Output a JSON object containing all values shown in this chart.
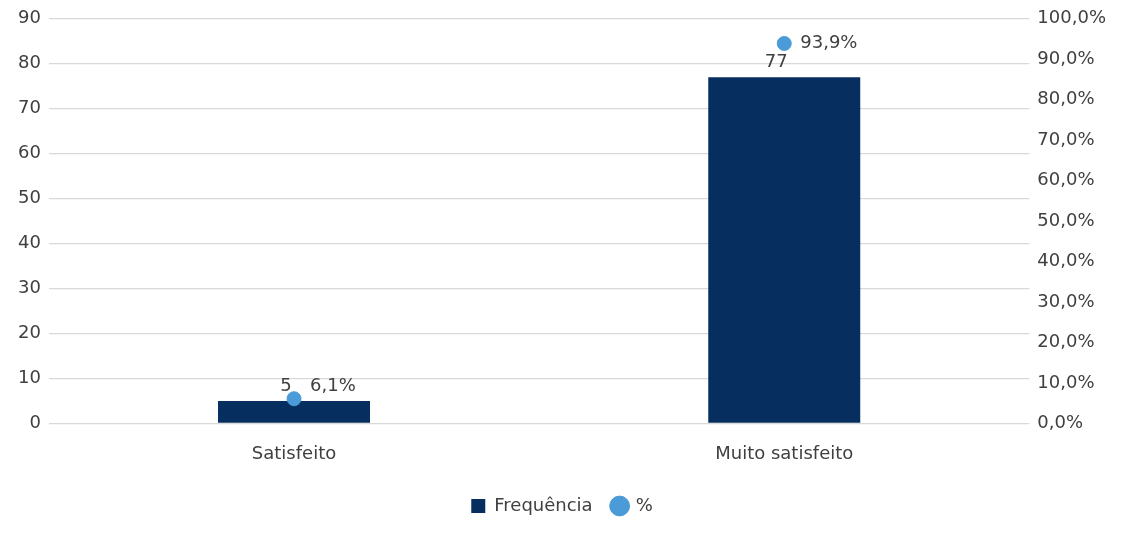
{
  "chart_data": {
    "type": "bar",
    "categories": [
      "Satisfeito",
      "Muito satisfeito"
    ],
    "series": [
      {
        "name": "Frequência",
        "type": "bar",
        "color": "#062f5f",
        "values": [
          5,
          77
        ],
        "value_labels": [
          "5",
          "77"
        ]
      },
      {
        "name": "%",
        "type": "scatter",
        "axis": "y2",
        "color": "#4a9bd7",
        "x": [
          "Satisfeito",
          "Muito satisfeito"
        ],
        "values": [
          6.1,
          93.9
        ],
        "value_labels": [
          "6,1%",
          "93,9%"
        ]
      }
    ],
    "ylim": [
      0,
      90
    ],
    "yticks": [
      0,
      10,
      20,
      30,
      40,
      50,
      60,
      70,
      80,
      90
    ],
    "y2lim": [
      0,
      100
    ],
    "y2ticks": [
      {
        "value": 0,
        "label": "0,0%"
      },
      {
        "value": 10,
        "label": "10,0%"
      },
      {
        "value": 20,
        "label": "20,0%"
      },
      {
        "value": 30,
        "label": "30,0%"
      },
      {
        "value": 40,
        "label": "40,0%"
      },
      {
        "value": 50,
        "label": "50,0%"
      },
      {
        "value": 60,
        "label": "60,0%"
      },
      {
        "value": 70,
        "label": "70,0%"
      },
      {
        "value": 80,
        "label": "80,0%"
      },
      {
        "value": 90,
        "label": "90,0%"
      },
      {
        "value": 100,
        "label": "100,0%"
      }
    ],
    "grid": "y",
    "legend": "bottom",
    "marker": "circle"
  }
}
